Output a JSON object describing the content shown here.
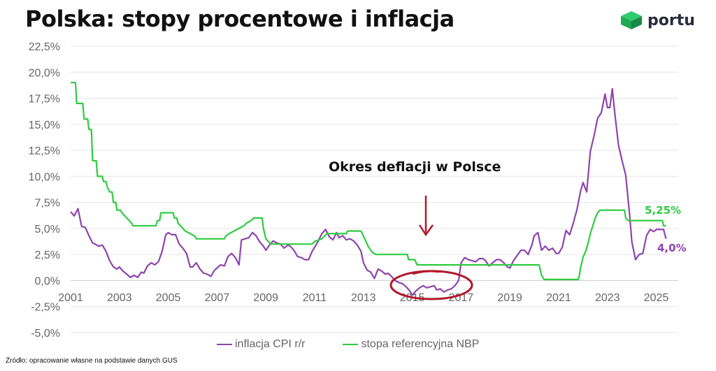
{
  "header": {
    "title": "Polska: stopy procentowe i inflacja"
  },
  "logo": {
    "text": "portu",
    "icon": "cube-icon",
    "color": "#22c55e"
  },
  "source": "Źródło: opracowanie własne na podstawie danych GUS",
  "annotation": {
    "text": "Okres deflacji w Polsce",
    "arrow_color": "#b0182a",
    "circle_color": "#b0182a"
  },
  "end_labels": {
    "rate": "5,25%",
    "cpi": "4,0%"
  },
  "chart_data": {
    "type": "line",
    "title": "Polska: stopy procentowe i inflacja",
    "xlim": [
      2001,
      2025.5
    ],
    "ylim": [
      -5,
      22.5
    ],
    "y_ticks": [
      {
        "value": 22.5,
        "label": "22,5%"
      },
      {
        "value": 20,
        "label": "20,0%"
      },
      {
        "value": 17.5,
        "label": "17,5%"
      },
      {
        "value": 15,
        "label": "15,0%"
      },
      {
        "value": 12.5,
        "label": "12,5%"
      },
      {
        "value": 10,
        "label": "10,0%"
      },
      {
        "value": 7.5,
        "label": "7,5%"
      },
      {
        "value": 5,
        "label": "5,0%"
      },
      {
        "value": 2.5,
        "label": "2,5%"
      },
      {
        "value": 0,
        "label": "0,0%"
      },
      {
        "value": -2.5,
        "label": "-2,5%"
      },
      {
        "value": -5,
        "label": "-5,0%"
      }
    ],
    "x_ticks": [
      {
        "value": 2001,
        "label": "2001"
      },
      {
        "value": 2003,
        "label": "2003"
      },
      {
        "value": 2005,
        "label": "2005"
      },
      {
        "value": 2007,
        "label": "2007"
      },
      {
        "value": 2009,
        "label": "2009"
      },
      {
        "value": 2011,
        "label": "2011"
      },
      {
        "value": 2013,
        "label": "2013"
      },
      {
        "value": 2015,
        "label": "2015"
      },
      {
        "value": 2017,
        "label": "2017"
      },
      {
        "value": 2019,
        "label": "2019"
      },
      {
        "value": 2021,
        "label": "2021"
      },
      {
        "value": 2023,
        "label": "2023"
      },
      {
        "value": 2025,
        "label": "2025"
      }
    ],
    "grid": true,
    "legend_position": "bottom",
    "series": [
      {
        "name": "inflacja CPI r/r",
        "color": "#8e44ad",
        "points": [
          [
            2001.0,
            6.6
          ],
          [
            2001.15,
            6.2
          ],
          [
            2001.3,
            6.9
          ],
          [
            2001.45,
            5.2
          ],
          [
            2001.6,
            5.1
          ],
          [
            2001.75,
            4.3
          ],
          [
            2001.9,
            3.6
          ],
          [
            2002.0,
            3.5
          ],
          [
            2002.15,
            3.3
          ],
          [
            2002.3,
            3.4
          ],
          [
            2002.45,
            2.8
          ],
          [
            2002.6,
            1.9
          ],
          [
            2002.75,
            1.3
          ],
          [
            2002.9,
            1.1
          ],
          [
            2003.0,
            1.3
          ],
          [
            2003.15,
            0.9
          ],
          [
            2003.3,
            0.6
          ],
          [
            2003.45,
            0.3
          ],
          [
            2003.6,
            0.5
          ],
          [
            2003.75,
            0.3
          ],
          [
            2003.9,
            0.8
          ],
          [
            2004.0,
            0.7
          ],
          [
            2004.15,
            1.4
          ],
          [
            2004.3,
            1.7
          ],
          [
            2004.45,
            1.5
          ],
          [
            2004.6,
            1.8
          ],
          [
            2004.75,
            2.8
          ],
          [
            2004.9,
            4.4
          ],
          [
            2005.0,
            4.6
          ],
          [
            2005.15,
            4.4
          ],
          [
            2005.3,
            4.4
          ],
          [
            2005.45,
            3.5
          ],
          [
            2005.6,
            3.1
          ],
          [
            2005.75,
            2.6
          ],
          [
            2005.9,
            1.3
          ],
          [
            2006.0,
            1.3
          ],
          [
            2006.15,
            1.7
          ],
          [
            2006.3,
            1.1
          ],
          [
            2006.45,
            0.7
          ],
          [
            2006.6,
            0.6
          ],
          [
            2006.75,
            0.4
          ],
          [
            2006.9,
            1.0
          ],
          [
            2007.0,
            1.2
          ],
          [
            2007.15,
            1.5
          ],
          [
            2007.3,
            1.4
          ],
          [
            2007.45,
            2.3
          ],
          [
            2007.6,
            2.6
          ],
          [
            2007.75,
            2.2
          ],
          [
            2007.9,
            1.5
          ],
          [
            2008.0,
            3.9
          ],
          [
            2008.15,
            4.0
          ],
          [
            2008.3,
            4.1
          ],
          [
            2008.45,
            4.6
          ],
          [
            2008.6,
            4.3
          ],
          [
            2008.75,
            3.7
          ],
          [
            2008.9,
            3.3
          ],
          [
            2009.0,
            2.9
          ],
          [
            2009.15,
            3.4
          ],
          [
            2009.3,
            3.8
          ],
          [
            2009.45,
            3.6
          ],
          [
            2009.6,
            3.5
          ],
          [
            2009.75,
            3.1
          ],
          [
            2009.9,
            3.4
          ],
          [
            2010.0,
            3.3
          ],
          [
            2010.15,
            2.9
          ],
          [
            2010.3,
            2.3
          ],
          [
            2010.45,
            2.2
          ],
          [
            2010.6,
            2.0
          ],
          [
            2010.75,
            2.0
          ],
          [
            2010.9,
            2.8
          ],
          [
            2011.0,
            3.2
          ],
          [
            2011.15,
            3.8
          ],
          [
            2011.3,
            4.5
          ],
          [
            2011.45,
            4.9
          ],
          [
            2011.6,
            4.2
          ],
          [
            2011.75,
            3.9
          ],
          [
            2011.9,
            4.6
          ],
          [
            2012.0,
            4.1
          ],
          [
            2012.15,
            4.3
          ],
          [
            2012.3,
            3.9
          ],
          [
            2012.45,
            4.0
          ],
          [
            2012.6,
            3.8
          ],
          [
            2012.75,
            3.4
          ],
          [
            2012.9,
            2.8
          ],
          [
            2013.0,
            1.7
          ],
          [
            2013.15,
            1.0
          ],
          [
            2013.3,
            0.8
          ],
          [
            2013.45,
            0.2
          ],
          [
            2013.6,
            1.1
          ],
          [
            2013.75,
            0.9
          ],
          [
            2013.9,
            0.6
          ],
          [
            2014.0,
            0.7
          ],
          [
            2014.15,
            0.4
          ],
          [
            2014.3,
            0.0
          ],
          [
            2014.45,
            -0.2
          ],
          [
            2014.6,
            -0.3
          ],
          [
            2014.75,
            -0.6
          ],
          [
            2014.9,
            -1.0
          ],
          [
            2015.0,
            -1.4
          ],
          [
            2015.15,
            -1.0
          ],
          [
            2015.3,
            -0.7
          ],
          [
            2015.45,
            -0.5
          ],
          [
            2015.6,
            -0.7
          ],
          [
            2015.75,
            -0.6
          ],
          [
            2015.9,
            -0.5
          ],
          [
            2016.0,
            -0.9
          ],
          [
            2016.15,
            -0.8
          ],
          [
            2016.3,
            -1.1
          ],
          [
            2016.45,
            -0.9
          ],
          [
            2016.6,
            -0.8
          ],
          [
            2016.75,
            -0.5
          ],
          [
            2016.9,
            0.0
          ],
          [
            2017.0,
            1.7
          ],
          [
            2017.15,
            2.2
          ],
          [
            2017.3,
            2.0
          ],
          [
            2017.45,
            1.9
          ],
          [
            2017.6,
            1.8
          ],
          [
            2017.75,
            2.1
          ],
          [
            2017.9,
            2.1
          ],
          [
            2018.0,
            1.9
          ],
          [
            2018.15,
            1.4
          ],
          [
            2018.3,
            1.7
          ],
          [
            2018.45,
            2.0
          ],
          [
            2018.6,
            2.0
          ],
          [
            2018.75,
            1.7
          ],
          [
            2018.9,
            1.3
          ],
          [
            2019.0,
            1.2
          ],
          [
            2019.15,
            1.9
          ],
          [
            2019.3,
            2.4
          ],
          [
            2019.45,
            2.9
          ],
          [
            2019.6,
            2.9
          ],
          [
            2019.75,
            2.5
          ],
          [
            2019.9,
            3.4
          ],
          [
            2020.0,
            4.3
          ],
          [
            2020.15,
            4.6
          ],
          [
            2020.3,
            2.9
          ],
          [
            2020.45,
            3.3
          ],
          [
            2020.6,
            2.9
          ],
          [
            2020.75,
            3.1
          ],
          [
            2020.9,
            2.6
          ],
          [
            2021.0,
            2.6
          ],
          [
            2021.15,
            3.2
          ],
          [
            2021.3,
            4.8
          ],
          [
            2021.45,
            4.4
          ],
          [
            2021.6,
            5.5
          ],
          [
            2021.75,
            6.8
          ],
          [
            2021.9,
            8.6
          ],
          [
            2022.0,
            9.4
          ],
          [
            2022.15,
            8.5
          ],
          [
            2022.3,
            12.4
          ],
          [
            2022.45,
            13.9
          ],
          [
            2022.6,
            15.6
          ],
          [
            2022.75,
            16.1
          ],
          [
            2022.9,
            17.9
          ],
          [
            2023.0,
            16.6
          ],
          [
            2023.1,
            16.6
          ],
          [
            2023.2,
            18.4
          ],
          [
            2023.3,
            16.1
          ],
          [
            2023.45,
            13.0
          ],
          [
            2023.6,
            11.5
          ],
          [
            2023.75,
            10.1
          ],
          [
            2023.9,
            6.5
          ],
          [
            2024.0,
            3.7
          ],
          [
            2024.15,
            2.0
          ],
          [
            2024.3,
            2.5
          ],
          [
            2024.45,
            2.6
          ],
          [
            2024.6,
            4.3
          ],
          [
            2024.75,
            4.9
          ],
          [
            2024.9,
            4.7
          ],
          [
            2025.0,
            4.9
          ],
          [
            2025.15,
            4.9
          ],
          [
            2025.3,
            4.9
          ],
          [
            2025.4,
            4.0
          ]
        ]
      },
      {
        "name": "stopa referencyjna NBP",
        "color": "#2ecc40",
        "points": [
          [
            2001.0,
            19.0
          ],
          [
            2001.2,
            19.0
          ],
          [
            2001.25,
            17.0
          ],
          [
            2001.5,
            17.0
          ],
          [
            2001.55,
            15.5
          ],
          [
            2001.7,
            15.5
          ],
          [
            2001.75,
            14.5
          ],
          [
            2001.85,
            14.5
          ],
          [
            2001.9,
            11.5
          ],
          [
            2002.05,
            11.5
          ],
          [
            2002.1,
            10.0
          ],
          [
            2002.3,
            10.0
          ],
          [
            2002.35,
            9.5
          ],
          [
            2002.45,
            9.5
          ],
          [
            2002.5,
            9.0
          ],
          [
            2002.6,
            8.5
          ],
          [
            2002.7,
            8.5
          ],
          [
            2002.75,
            7.5
          ],
          [
            2002.85,
            7.5
          ],
          [
            2002.9,
            6.75
          ],
          [
            2003.05,
            6.75
          ],
          [
            2003.1,
            6.5
          ],
          [
            2003.2,
            6.25
          ],
          [
            2003.3,
            6.0
          ],
          [
            2003.4,
            5.75
          ],
          [
            2003.5,
            5.5
          ],
          [
            2003.55,
            5.25
          ],
          [
            2004.5,
            5.25
          ],
          [
            2004.55,
            5.75
          ],
          [
            2004.65,
            5.75
          ],
          [
            2004.7,
            6.5
          ],
          [
            2005.2,
            6.5
          ],
          [
            2005.25,
            6.0
          ],
          [
            2005.35,
            6.0
          ],
          [
            2005.4,
            5.5
          ],
          [
            2005.6,
            5.0
          ],
          [
            2005.7,
            4.75
          ],
          [
            2005.9,
            4.5
          ],
          [
            2006.1,
            4.25
          ],
          [
            2006.15,
            4.0
          ],
          [
            2007.3,
            4.0
          ],
          [
            2007.35,
            4.25
          ],
          [
            2007.5,
            4.5
          ],
          [
            2007.7,
            4.75
          ],
          [
            2007.9,
            5.0
          ],
          [
            2008.1,
            5.25
          ],
          [
            2008.2,
            5.5
          ],
          [
            2008.4,
            5.75
          ],
          [
            2008.5,
            6.0
          ],
          [
            2008.85,
            6.0
          ],
          [
            2008.9,
            5.0
          ],
          [
            2009.0,
            4.0
          ],
          [
            2009.1,
            3.75
          ],
          [
            2009.2,
            3.5
          ],
          [
            2010.9,
            3.5
          ],
          [
            2011.0,
            3.75
          ],
          [
            2011.3,
            4.0
          ],
          [
            2011.4,
            4.25
          ],
          [
            2011.5,
            4.5
          ],
          [
            2012.3,
            4.5
          ],
          [
            2012.35,
            4.75
          ],
          [
            2012.9,
            4.75
          ],
          [
            2013.0,
            4.25
          ],
          [
            2013.1,
            3.75
          ],
          [
            2013.2,
            3.25
          ],
          [
            2013.35,
            2.75
          ],
          [
            2013.5,
            2.5
          ],
          [
            2014.8,
            2.5
          ],
          [
            2014.85,
            2.0
          ],
          [
            2015.1,
            2.0
          ],
          [
            2015.2,
            1.5
          ],
          [
            2020.2,
            1.5
          ],
          [
            2020.25,
            1.0
          ],
          [
            2020.3,
            0.5
          ],
          [
            2020.4,
            0.1
          ],
          [
            2021.8,
            0.1
          ],
          [
            2021.85,
            0.5
          ],
          [
            2021.9,
            1.25
          ],
          [
            2022.0,
            2.25
          ],
          [
            2022.1,
            2.75
          ],
          [
            2022.2,
            3.5
          ],
          [
            2022.3,
            4.5
          ],
          [
            2022.4,
            5.25
          ],
          [
            2022.5,
            6.0
          ],
          [
            2022.6,
            6.5
          ],
          [
            2022.7,
            6.75
          ],
          [
            2023.7,
            6.75
          ],
          [
            2023.75,
            6.0
          ],
          [
            2023.85,
            5.75
          ],
          [
            2025.25,
            5.75
          ],
          [
            2025.3,
            5.25
          ],
          [
            2025.4,
            5.25
          ]
        ]
      }
    ]
  }
}
